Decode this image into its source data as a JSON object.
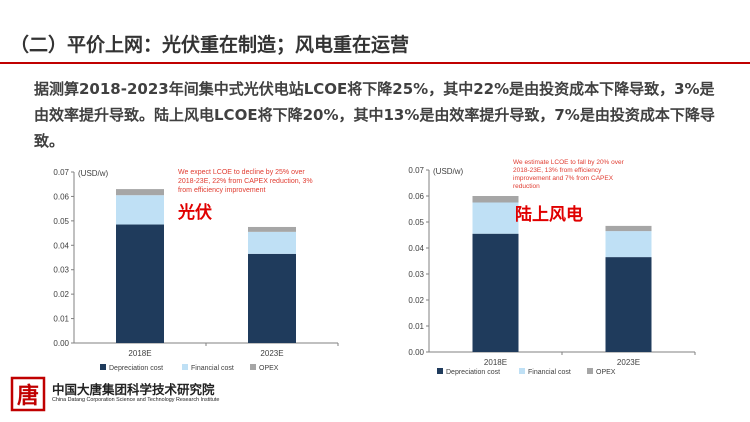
{
  "page": {
    "title": "（二）平价上网：光伏重在制造；风电重在运营",
    "body": "据测算2018-2023年间集中式光伏电站LCOE将下降25%，其中22%是由投资成本下降导致，3%是由效率提升导致。陆上风电LCOE将下降20%，其中13%是由效率提升导致，7%是由投资成本下降导致。",
    "accent_color": "#c00000"
  },
  "logo": {
    "name": "中国大唐集团科学技术研究院",
    "subtitle": "China Datang Corporation Science and Technology Research Institute",
    "mark_text": "唐"
  },
  "chart_data": [
    {
      "type": "bar",
      "stacked": true,
      "unit_label": "(USD/w)",
      "categories": [
        "2018E",
        "2023E"
      ],
      "series": [
        {
          "name": "Depreciation cost",
          "values": [
            0.0485,
            0.0365
          ],
          "color": "#1f3b5c"
        },
        {
          "name": "Financial cost",
          "values": [
            0.012,
            0.009
          ],
          "color": "#bfe0f5"
        },
        {
          "name": "OPEX",
          "values": [
            0.0025,
            0.002
          ],
          "color": "#a6a6a6"
        }
      ],
      "ylim": [
        0,
        0.07
      ],
      "yticks": [
        "0.00",
        "0.01",
        "0.02",
        "0.03",
        "0.04",
        "0.05",
        "0.06",
        "0.07"
      ],
      "annotation": "We expect LCOE to decline by 25% over 2018-23E, 22% from CAPEX reduction, 3% from efficiency improvement",
      "overlay_label": "光伏",
      "legend_position": "bottom"
    },
    {
      "type": "bar",
      "stacked": true,
      "unit_label": "(USD/w)",
      "categories": [
        "2018E",
        "2023E"
      ],
      "series": [
        {
          "name": "Depreciation cost",
          "values": [
            0.0455,
            0.0365
          ],
          "color": "#1f3b5c"
        },
        {
          "name": "Financial cost",
          "values": [
            0.012,
            0.01
          ],
          "color": "#bfe0f5"
        },
        {
          "name": "OPEX",
          "values": [
            0.0025,
            0.002
          ],
          "color": "#a6a6a6"
        }
      ],
      "ylim": [
        0,
        0.07
      ],
      "yticks": [
        "0.00",
        "0.01",
        "0.02",
        "0.03",
        "0.04",
        "0.05",
        "0.06",
        "0.07"
      ],
      "annotation": "We estimate LCOE to fall by 20% over 2018-23E, 13% from efficiency improvement and 7% from CAPEX reduction",
      "overlay_label": "陆上风电",
      "legend_position": "bottom"
    }
  ]
}
